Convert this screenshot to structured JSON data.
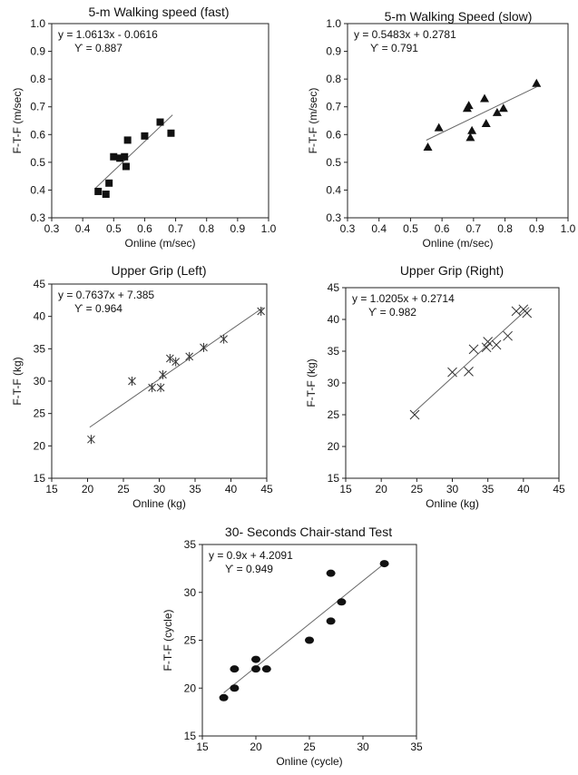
{
  "chart_data": [
    {
      "type": "scatter",
      "title": "5-m Walking speed (fast)",
      "xlabel": "Online (m/sec)",
      "ylabel": "F-T-F (m/sec)",
      "xlim": [
        0.3,
        1.0
      ],
      "ylim": [
        0.3,
        1.0
      ],
      "xticks": [
        "0.3",
        "0.4",
        "0.5",
        "0.6",
        "0.7",
        "0.8",
        "0.9",
        "1.0"
      ],
      "yticks": [
        "0.3",
        "0.4",
        "0.5",
        "0.6",
        "0.7",
        "0.8",
        "0.9",
        "1.0"
      ],
      "marker": "square",
      "equation": "y = 1.0613x - 0.0616",
      "r_text": "ϒ = 0.887",
      "trendline": {
        "slope": 1.0613,
        "intercept": -0.0616,
        "x_range": [
          0.44,
          0.69
        ]
      },
      "points": [
        {
          "x": 0.45,
          "y": 0.395
        },
        {
          "x": 0.475,
          "y": 0.385
        },
        {
          "x": 0.485,
          "y": 0.425
        },
        {
          "x": 0.5,
          "y": 0.52
        },
        {
          "x": 0.52,
          "y": 0.515
        },
        {
          "x": 0.535,
          "y": 0.52
        },
        {
          "x": 0.54,
          "y": 0.485
        },
        {
          "x": 0.545,
          "y": 0.58
        },
        {
          "x": 0.6,
          "y": 0.595
        },
        {
          "x": 0.65,
          "y": 0.645
        },
        {
          "x": 0.685,
          "y": 0.605
        }
      ]
    },
    {
      "type": "scatter",
      "title": "5-m Walking Speed (slow)",
      "xlabel": "Online (m/sec)",
      "ylabel": "F-T-F (m/sec)",
      "xlim": [
        0.3,
        1.0
      ],
      "ylim": [
        0.3,
        1.0
      ],
      "xticks": [
        "0.3",
        "0.4",
        "0.5",
        "0.6",
        "0.7",
        "0.8",
        "0.9",
        "1.0"
      ],
      "yticks": [
        "0.3",
        "0.4",
        "0.5",
        "0.6",
        "0.7",
        "0.8",
        "0.9",
        "1.0"
      ],
      "marker": "triangle",
      "equation": "y = 0.5483x + 0.2781",
      "r_text": "ϒ = 0.791",
      "trendline": {
        "slope": 0.5483,
        "intercept": 0.2781,
        "x_range": [
          0.55,
          0.9
        ]
      },
      "points": [
        {
          "x": 0.555,
          "y": 0.555
        },
        {
          "x": 0.59,
          "y": 0.625
        },
        {
          "x": 0.68,
          "y": 0.695
        },
        {
          "x": 0.685,
          "y": 0.705
        },
        {
          "x": 0.69,
          "y": 0.59
        },
        {
          "x": 0.695,
          "y": 0.615
        },
        {
          "x": 0.735,
          "y": 0.73
        },
        {
          "x": 0.74,
          "y": 0.64
        },
        {
          "x": 0.775,
          "y": 0.68
        },
        {
          "x": 0.795,
          "y": 0.695
        },
        {
          "x": 0.9,
          "y": 0.785
        }
      ]
    },
    {
      "type": "scatter",
      "title": "Upper Grip (Left)",
      "xlabel": "Online (kg)",
      "ylabel": "F-T-F (kg)",
      "xlim": [
        15,
        45
      ],
      "ylim": [
        15,
        45
      ],
      "xticks": [
        "15",
        "20",
        "25",
        "30",
        "35",
        "40",
        "45"
      ],
      "yticks": [
        "15",
        "20",
        "25",
        "30",
        "35",
        "40",
        "45"
      ],
      "marker": "star",
      "equation": "y = 0.7637x + 7.385",
      "r_text": "ϒ = 0.964",
      "trendline": {
        "slope": 0.7637,
        "intercept": 7.385,
        "x_range": [
          20.3,
          44.5
        ]
      },
      "points": [
        {
          "x": 20.5,
          "y": 21
        },
        {
          "x": 26.2,
          "y": 30
        },
        {
          "x": 29,
          "y": 29
        },
        {
          "x": 30.2,
          "y": 29
        },
        {
          "x": 30.5,
          "y": 31
        },
        {
          "x": 31.5,
          "y": 33.5
        },
        {
          "x": 32.3,
          "y": 33
        },
        {
          "x": 34.2,
          "y": 33.8
        },
        {
          "x": 36.2,
          "y": 35.2
        },
        {
          "x": 39,
          "y": 36.5
        },
        {
          "x": 44.2,
          "y": 40.8
        }
      ]
    },
    {
      "type": "scatter",
      "title": "Upper Grip (Right)",
      "xlabel": "Online (kg)",
      "ylabel": "F-T-F (kg)",
      "xlim": [
        15,
        45
      ],
      "ylim": [
        15,
        45
      ],
      "xticks": [
        "15",
        "20",
        "25",
        "30",
        "35",
        "40",
        "45"
      ],
      "yticks": [
        "15",
        "20",
        "25",
        "30",
        "35",
        "40",
        "45"
      ],
      "marker": "x",
      "equation": "y = 1.0205x + 0.2714",
      "r_text": "ϒ = 0.982",
      "trendline": {
        "slope": 1.0205,
        "intercept": 0.2714,
        "x_range": [
          24.5,
          40.8
        ]
      },
      "points": [
        {
          "x": 24.7,
          "y": 25
        },
        {
          "x": 30,
          "y": 31.7
        },
        {
          "x": 32.3,
          "y": 31.8
        },
        {
          "x": 33,
          "y": 35.3
        },
        {
          "x": 34.8,
          "y": 35.6
        },
        {
          "x": 35,
          "y": 36.5
        },
        {
          "x": 36.2,
          "y": 36
        },
        {
          "x": 37.8,
          "y": 37.4
        },
        {
          "x": 39,
          "y": 41.3
        },
        {
          "x": 40,
          "y": 41.6
        },
        {
          "x": 40.5,
          "y": 41
        }
      ]
    },
    {
      "type": "scatter",
      "title": "30- Seconds Chair-stand Test",
      "xlabel": "Online (cycle)",
      "ylabel": "F-T-F (cycle)",
      "xlim": [
        15,
        35
      ],
      "ylim": [
        15,
        35
      ],
      "xticks": [
        "15",
        "20",
        "25",
        "30",
        "35"
      ],
      "yticks": [
        "15",
        "20",
        "25",
        "30",
        "35"
      ],
      "marker": "circle",
      "equation": "y = 0.9x + 4.2091",
      "r_text": "ϒ = 0.949",
      "trendline": {
        "slope": 0.9,
        "intercept": 4.2091,
        "x_range": [
          17,
          32
        ]
      },
      "points": [
        {
          "x": 17,
          "y": 19
        },
        {
          "x": 18,
          "y": 20
        },
        {
          "x": 18,
          "y": 22
        },
        {
          "x": 20,
          "y": 22
        },
        {
          "x": 20,
          "y": 23
        },
        {
          "x": 21,
          "y": 22
        },
        {
          "x": 25,
          "y": 25
        },
        {
          "x": 27,
          "y": 27
        },
        {
          "x": 27,
          "y": 32
        },
        {
          "x": 28,
          "y": 29
        },
        {
          "x": 32,
          "y": 33
        }
      ]
    }
  ]
}
